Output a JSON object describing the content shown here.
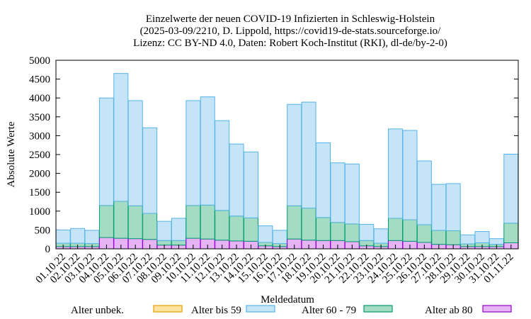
{
  "chart_data": {
    "type": "bar",
    "stacked": true,
    "title_lines": [
      "Einzelwerte der neuen COVID-19 Infizierten in Schleswig-Holstein",
      "(2025-03-09/2210, D. Lippold, https://covid19-de-stats.sourceforge.io/",
      "Lizenz: CC BY-ND 4.0, Daten: Robert Koch-Institut (RKI), dl-de/by-2-0)"
    ],
    "xlabel": "Meldedatum",
    "ylabel": "Absolute Werte",
    "ylim": [
      0,
      5000
    ],
    "yticks": [
      0,
      500,
      1000,
      1500,
      2000,
      2500,
      3000,
      3500,
      4000,
      4500,
      5000
    ],
    "grid": false,
    "legend_position": "bottom",
    "categories": [
      "01.10.22",
      "02.10.22",
      "03.10.22",
      "04.10.22",
      "05.10.22",
      "06.10.22",
      "07.10.22",
      "08.10.22",
      "09.10.22",
      "10.10.22",
      "11.10.22",
      "12.10.22",
      "13.10.22",
      "14.10.22",
      "15.10.22",
      "16.10.22",
      "17.10.22",
      "18.10.22",
      "19.10.22",
      "20.10.22",
      "21.10.22",
      "22.10.22",
      "23.10.22",
      "24.10.22",
      "25.10.22",
      "26.10.22",
      "27.10.22",
      "28.10.22",
      "29.10.22",
      "30.10.22",
      "31.10.22",
      "01.11.22"
    ],
    "series": [
      {
        "name": "Alter ab 80",
        "fill": "#e6b3f5",
        "stroke": "#9400d3",
        "values": [
          60,
          60,
          60,
          300,
          280,
          270,
          250,
          100,
          100,
          280,
          260,
          230,
          210,
          200,
          80,
          60,
          260,
          230,
          220,
          220,
          190,
          80,
          60,
          220,
          200,
          170,
          120,
          110,
          60,
          60,
          60,
          160
        ]
      },
      {
        "name": "Alter 60 - 79",
        "fill": "#a3dcc3",
        "stroke": "#009e73",
        "values": [
          90,
          90,
          80,
          850,
          980,
          870,
          690,
          120,
          120,
          870,
          900,
          790,
          660,
          620,
          90,
          80,
          880,
          850,
          610,
          480,
          470,
          140,
          90,
          590,
          570,
          470,
          370,
          370,
          70,
          100,
          60,
          520
        ]
      },
      {
        "name": "Alter bis 59",
        "fill": "#c6e4f7",
        "stroke": "#56b4e9",
        "values": [
          350,
          390,
          350,
          2850,
          3390,
          2790,
          2270,
          510,
          590,
          2780,
          2870,
          2380,
          1910,
          1750,
          440,
          350,
          2690,
          2810,
          1980,
          1580,
          1590,
          430,
          380,
          2370,
          2370,
          1690,
          1220,
          1250,
          240,
          300,
          150,
          1830
        ]
      },
      {
        "name": "Alter unbek.",
        "fill": "#fde2a0",
        "stroke": "#e69f00",
        "values": [
          0,
          0,
          0,
          0,
          0,
          0,
          0,
          0,
          0,
          0,
          0,
          0,
          0,
          0,
          0,
          0,
          0,
          0,
          0,
          0,
          0,
          0,
          0,
          0,
          0,
          0,
          0,
          0,
          0,
          0,
          0,
          0
        ]
      }
    ],
    "legend_order": [
      "Alter unbek.",
      "Alter bis 59",
      "Alter 60 - 79",
      "Alter ab 80"
    ]
  }
}
